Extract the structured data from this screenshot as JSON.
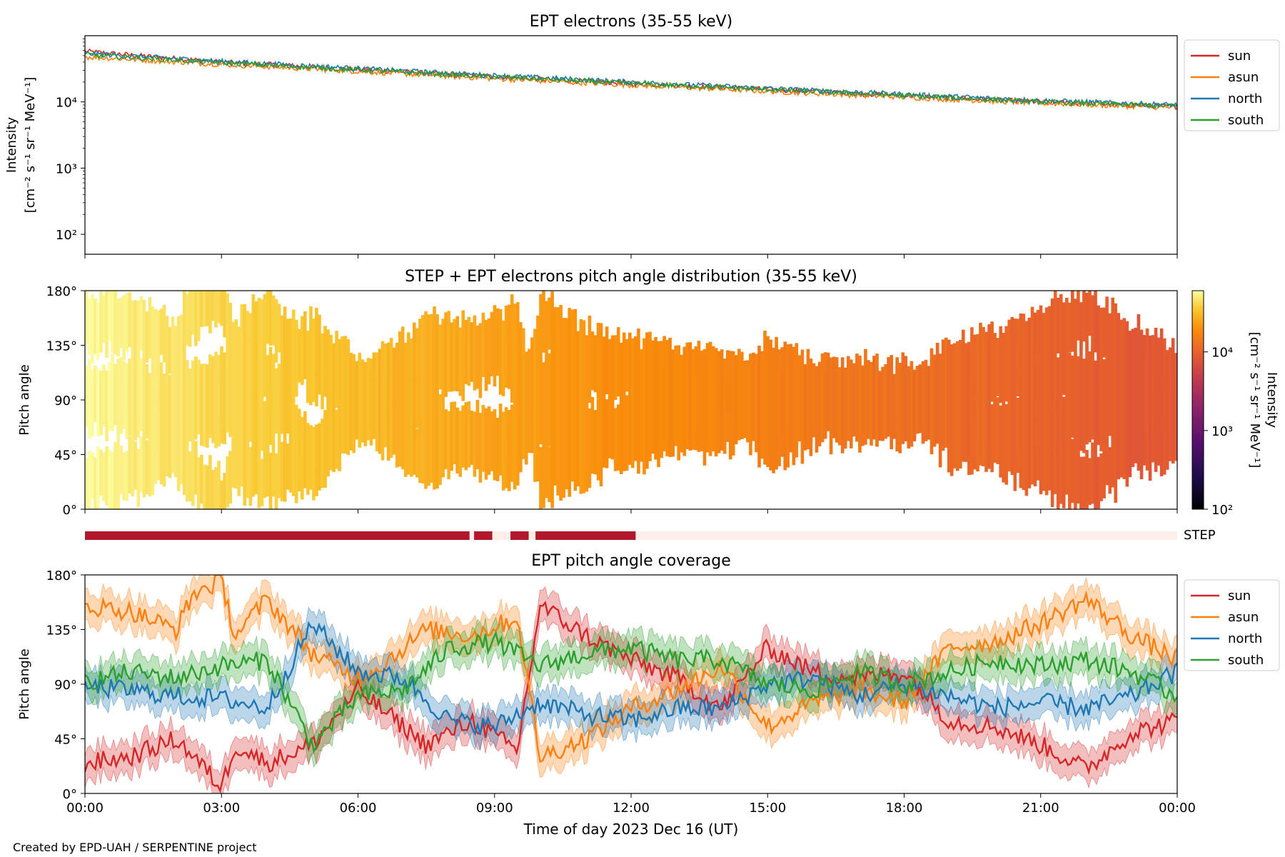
{
  "figure": {
    "footer": "Created by EPD-UAH / SERPENTINE project",
    "xlabel": "Time of day 2023 Dec 16 (UT)",
    "time_ticks": [
      "00:00",
      "03:00",
      "06:00",
      "09:00",
      "12:00",
      "15:00",
      "18:00",
      "21:00",
      "00:00"
    ],
    "colors": {
      "sun": "#d62728",
      "asun": "#ff7f0e",
      "north": "#1f77b4",
      "south": "#2ca02c",
      "step_on": "#b2182b",
      "step_off": "#fdeeea"
    }
  },
  "chart_data": [
    {
      "type": "line",
      "title": "EPT electrons (35-55 keV)",
      "ylabel_line1": "Intensity",
      "ylabel_line2": "[cm⁻² s⁻¹ sr⁻¹ MeV⁻¹]",
      "yscale": "log",
      "ylim": [
        50,
        100000
      ],
      "yticks": [
        {
          "value": 100,
          "label": "10²"
        },
        {
          "value": 1000,
          "label": "10³"
        },
        {
          "value": 10000,
          "label": "10⁴"
        }
      ],
      "x_hours_range": [
        0,
        24
      ],
      "legend_position": "outside-right-top",
      "legend": [
        "sun",
        "asun",
        "north",
        "south"
      ],
      "series": [
        {
          "name": "sun",
          "x": [
            0,
            3,
            6,
            9,
            12,
            15,
            18,
            21,
            24
          ],
          "values": [
            58000,
            40000,
            31000,
            24000,
            19000,
            15500,
            12500,
            10000,
            8500
          ]
        },
        {
          "name": "asun",
          "x": [
            0,
            3,
            6,
            9,
            12,
            15,
            18,
            21,
            24
          ],
          "values": [
            48000,
            37000,
            29000,
            22500,
            18000,
            14500,
            11800,
            9600,
            8200
          ]
        },
        {
          "name": "north",
          "x": [
            0,
            3,
            6,
            9,
            12,
            15,
            18,
            21,
            24
          ],
          "values": [
            54000,
            41000,
            32000,
            25000,
            20000,
            16000,
            13000,
            10500,
            9000
          ]
        },
        {
          "name": "south",
          "x": [
            0,
            3,
            6,
            9,
            12,
            15,
            18,
            21,
            24
          ],
          "values": [
            52000,
            39000,
            30500,
            24000,
            19000,
            15500,
            12500,
            10000,
            8600
          ]
        }
      ]
    },
    {
      "type": "heatmap",
      "title": "STEP + EPT electrons pitch angle distribution (35-55 keV)",
      "ylabel": "Pitch angle",
      "ylim": [
        0,
        180
      ],
      "yticks": [
        "0°",
        "45°",
        "90°",
        "135°",
        "180°"
      ],
      "colorbar": {
        "label_line1": "Intensity",
        "label_line2": "[cm⁻² s⁻¹ sr⁻¹ MeV⁻¹]",
        "scale": "log",
        "range": [
          100,
          60000
        ],
        "ticks": [
          {
            "value": 100,
            "label": "10²"
          },
          {
            "value": 1000,
            "label": "10³"
          },
          {
            "value": 10000,
            "label": "10⁴"
          }
        ]
      },
      "intensity_x_hours": [
        0,
        3,
        6,
        9,
        12,
        15,
        18,
        21,
        24
      ],
      "intensity_values": [
        58000,
        40000,
        31000,
        24000,
        19000,
        15500,
        12500,
        10000,
        8500
      ]
    },
    {
      "type": "bar",
      "label": "STEP",
      "coverage_on_hours": [
        [
          0,
          8.45
        ],
        [
          8.55,
          8.95
        ],
        [
          9.35,
          9.75
        ],
        [
          9.9,
          12.1
        ]
      ],
      "x_hours_range": [
        0,
        24
      ]
    },
    {
      "type": "line",
      "title": "EPT pitch angle coverage",
      "ylabel": "Pitch angle",
      "ylim": [
        0,
        180
      ],
      "yticks": [
        "0°",
        "45°",
        "90°",
        "135°",
        "180°"
      ],
      "legend_position": "outside-right-top",
      "legend": [
        "sun",
        "asun",
        "north",
        "south"
      ],
      "band_halfwidth_deg": 13,
      "series": [
        {
          "name": "sun",
          "x": [
            0,
            1,
            2,
            2.4,
            3,
            3.3,
            4,
            5,
            6,
            6.5,
            7.5,
            8.5,
            9.5,
            10,
            11,
            12,
            13,
            14,
            15,
            16,
            17,
            18,
            19,
            20,
            21,
            22,
            23,
            24
          ],
          "values": [
            25,
            30,
            45,
            30,
            5,
            40,
            25,
            40,
            85,
            70,
            40,
            60,
            35,
            155,
            130,
            110,
            95,
            70,
            120,
            100,
            95,
            100,
            60,
            55,
            40,
            20,
            50,
            60
          ]
        },
        {
          "name": "asun",
          "x": [
            0,
            1,
            2,
            2.4,
            3,
            3.3,
            4,
            5,
            6,
            6.5,
            7.5,
            8.5,
            9.5,
            10,
            11,
            12,
            13,
            14,
            15,
            16,
            17,
            18,
            19,
            20,
            21,
            22,
            23,
            24
          ],
          "values": [
            155,
            150,
            135,
            165,
            175,
            130,
            160,
            115,
            95,
            105,
            135,
            130,
            145,
            30,
            45,
            70,
            85,
            105,
            55,
            75,
            85,
            75,
            120,
            125,
            140,
            160,
            130,
            110
          ]
        },
        {
          "name": "north",
          "x": [
            0,
            1,
            2,
            3,
            4,
            5,
            6,
            7,
            8,
            9,
            10,
            11,
            12,
            13,
            14,
            15,
            16,
            17,
            18,
            19,
            20,
            21,
            22,
            23,
            24
          ],
          "values": [
            88,
            85,
            80,
            78,
            70,
            140,
            100,
            95,
            60,
            55,
            75,
            65,
            60,
            70,
            70,
            90,
            95,
            80,
            90,
            80,
            70,
            75,
            70,
            80,
            100
          ]
        },
        {
          "name": "south",
          "x": [
            0,
            1,
            2,
            3,
            4,
            5,
            6,
            7,
            8,
            9,
            10,
            11,
            12,
            13,
            14,
            15,
            16,
            17,
            18,
            19,
            20,
            21,
            22,
            23,
            24
          ],
          "values": [
            92,
            100,
            95,
            105,
            110,
            40,
            80,
            85,
            120,
            125,
            105,
            115,
            120,
            110,
            110,
            90,
            85,
            100,
            90,
            100,
            110,
            105,
            110,
            100,
            80
          ]
        }
      ]
    }
  ]
}
